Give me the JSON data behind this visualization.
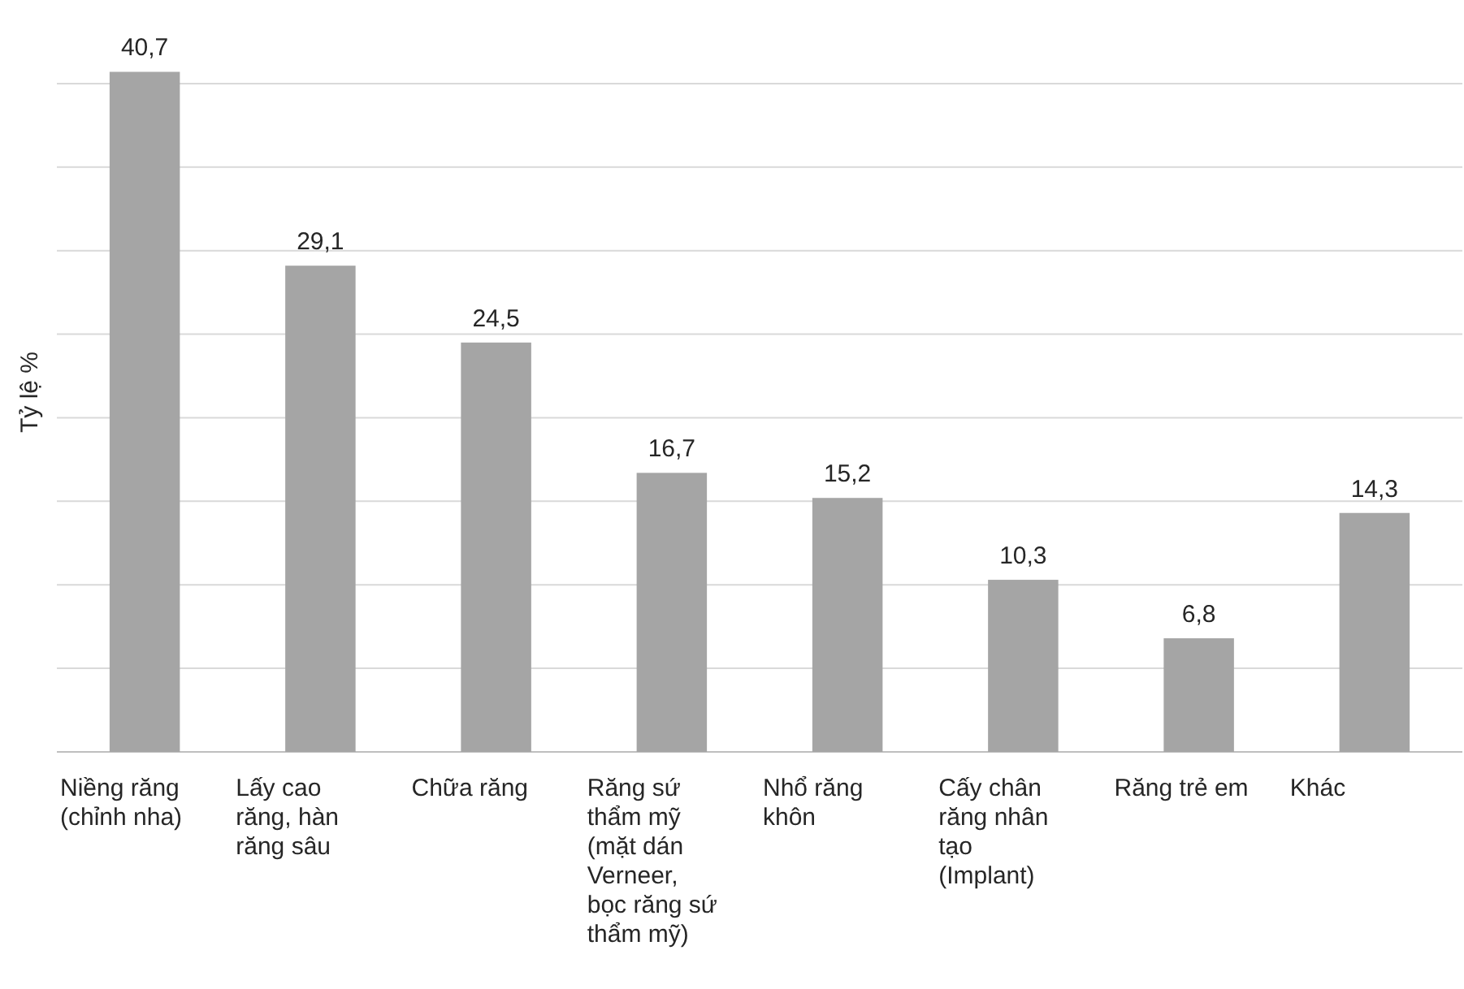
{
  "chart_data": {
    "type": "bar",
    "ylabel": "Tỷ lệ %",
    "categories": [
      "Niềng răng (chỉnh nha)",
      "Lấy cao răng, hàn răng sâu",
      "Chữa răng",
      "Răng sứ thẩm mỹ (mặt dán Verneer, bọc răng sứ thẩm mỹ)",
      "Nhổ răng khôn",
      "Cấy chân răng nhân tạo (Implant)",
      "Răng trẻ em",
      "Khác"
    ],
    "values": [
      40.7,
      29.1,
      24.5,
      16.7,
      15.2,
      10.3,
      6.8,
      14.3
    ],
    "value_labels": [
      "40,7",
      "29,1",
      "24,5",
      "16,7",
      "15,2",
      "10,3",
      "6,8",
      "14,3"
    ],
    "color": "#a5a5a5",
    "yticks": [
      {
        "value": 0,
        "label": null
      },
      {
        "value": 5,
        "label": null
      },
      {
        "value": 10,
        "label": null
      },
      {
        "value": 15,
        "label": null
      },
      {
        "value": 20,
        "label": null
      },
      {
        "value": 25,
        "label": null
      },
      {
        "value": 30,
        "label": null
      },
      {
        "value": 35,
        "label": null
      },
      {
        "value": 40,
        "label": null
      }
    ],
    "grid": "y",
    "tick_labels": "x"
  }
}
